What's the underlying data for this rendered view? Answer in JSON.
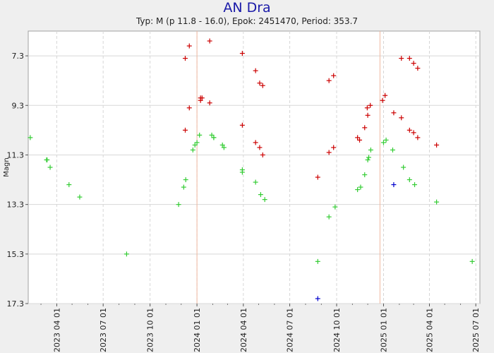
{
  "chart_data": {
    "type": "scatter",
    "title": "AN Dra",
    "subtitle": "Typ: M (p 11.8 - 16.0), Epok: 2451470, Period: 353.7",
    "ylabel": "Magn",
    "xlabel": "",
    "xlim": [
      "2023-02-04",
      "2025-07-09"
    ],
    "ylim": [
      17.3,
      6.3
    ],
    "y_inverted": true,
    "grid": true,
    "y_ticks": [
      "7.3",
      "9.3",
      "11.3",
      "13.3",
      "15.3",
      "17.3"
    ],
    "x_ticks": [
      "2023 04 01",
      "2023 07 01",
      "2023 10 01",
      "2024 01 01",
      "2024 04 01",
      "2024 07 01",
      "2024 10 01",
      "2025 01 01",
      "2025 04 01",
      "2025 07 01"
    ],
    "vertical_markers": [
      "2024-01-01",
      "2024-12-25"
    ],
    "colors": {
      "red": "#cc0000",
      "green": "#33cc33",
      "blue": "#0000cc",
      "title": "#1a1aa8"
    },
    "series": [
      {
        "color": "red",
        "points": [
          [
            "2023-12-09",
            7.4
          ],
          [
            "2023-12-09",
            10.3
          ],
          [
            "2023-12-17",
            6.9
          ],
          [
            "2023-12-17",
            9.4
          ],
          [
            "2024-01-08",
            9.0
          ],
          [
            "2024-01-08",
            9.1
          ],
          [
            "2024-01-11",
            9.0
          ],
          [
            "2024-01-26",
            6.7
          ],
          [
            "2024-01-26",
            9.2
          ],
          [
            "2024-03-30",
            7.2
          ],
          [
            "2024-03-30",
            10.1
          ],
          [
            "2024-04-25",
            7.9
          ],
          [
            "2024-04-25",
            10.8
          ],
          [
            "2024-05-03",
            8.4
          ],
          [
            "2024-05-03",
            11.0
          ],
          [
            "2024-05-09",
            8.5
          ],
          [
            "2024-05-09",
            11.3
          ],
          [
            "2024-08-25",
            12.2
          ],
          [
            "2024-09-16",
            8.3
          ],
          [
            "2024-09-16",
            11.2
          ],
          [
            "2024-09-25",
            8.1
          ],
          [
            "2024-09-25",
            11.0
          ],
          [
            "2024-11-11",
            10.6
          ],
          [
            "2024-11-15",
            10.7
          ],
          [
            "2024-11-25",
            10.2
          ],
          [
            "2024-11-30",
            9.4
          ],
          [
            "2024-12-01",
            9.7
          ],
          [
            "2024-12-06",
            9.3
          ],
          [
            "2024-12-30",
            9.1
          ],
          [
            "2025-01-04",
            8.9
          ],
          [
            "2025-01-21",
            9.6
          ],
          [
            "2025-02-05",
            7.4
          ],
          [
            "2025-02-05",
            9.8
          ],
          [
            "2025-02-21",
            7.4
          ],
          [
            "2025-02-21",
            10.3
          ],
          [
            "2025-03-01",
            7.6
          ],
          [
            "2025-03-01",
            10.4
          ],
          [
            "2025-03-09",
            7.8
          ],
          [
            "2025-03-09",
            10.6
          ],
          [
            "2025-04-15",
            10.9
          ]
        ]
      },
      {
        "color": "green",
        "points": [
          [
            "2023-02-08",
            10.6
          ],
          [
            "2023-03-12",
            11.5
          ],
          [
            "2023-03-13",
            11.5
          ],
          [
            "2023-03-19",
            11.8
          ],
          [
            "2023-04-25",
            12.5
          ],
          [
            "2023-05-16",
            13.0
          ],
          [
            "2023-08-16",
            15.3
          ],
          [
            "2023-11-26",
            13.3
          ],
          [
            "2023-12-06",
            12.6
          ],
          [
            "2023-12-10",
            12.3
          ],
          [
            "2023-12-24",
            11.1
          ],
          [
            "2023-12-28",
            10.9
          ],
          [
            "2024-01-01",
            10.8
          ],
          [
            "2024-01-06",
            10.5
          ],
          [
            "2024-01-30",
            10.5
          ],
          [
            "2024-02-03",
            10.6
          ],
          [
            "2024-02-03",
            10.6
          ],
          [
            "2024-02-20",
            10.9
          ],
          [
            "2024-02-23",
            11.0
          ],
          [
            "2024-03-30",
            11.9
          ],
          [
            "2024-03-30",
            12.0
          ],
          [
            "2024-04-25",
            12.4
          ],
          [
            "2024-05-05",
            12.9
          ],
          [
            "2024-05-13",
            13.1
          ],
          [
            "2024-08-25",
            15.6
          ],
          [
            "2024-09-16",
            13.8
          ],
          [
            "2024-09-28",
            13.4
          ],
          [
            "2024-11-11",
            12.7
          ],
          [
            "2024-11-17",
            12.6
          ],
          [
            "2024-11-25",
            12.1
          ],
          [
            "2024-12-01",
            11.5
          ],
          [
            "2024-12-03",
            11.4
          ],
          [
            "2024-12-07",
            11.1
          ],
          [
            "2025-01-01",
            10.8
          ],
          [
            "2025-01-06",
            10.7
          ],
          [
            "2025-01-19",
            11.1
          ],
          [
            "2025-02-09",
            11.8
          ],
          [
            "2025-02-21",
            12.3
          ],
          [
            "2025-03-03",
            12.5
          ],
          [
            "2025-04-15",
            13.2
          ],
          [
            "2025-06-24",
            15.6
          ]
        ]
      },
      {
        "color": "blue",
        "points": [
          [
            "2024-08-25",
            17.1
          ],
          [
            "2025-01-21",
            12.5
          ]
        ]
      }
    ]
  }
}
